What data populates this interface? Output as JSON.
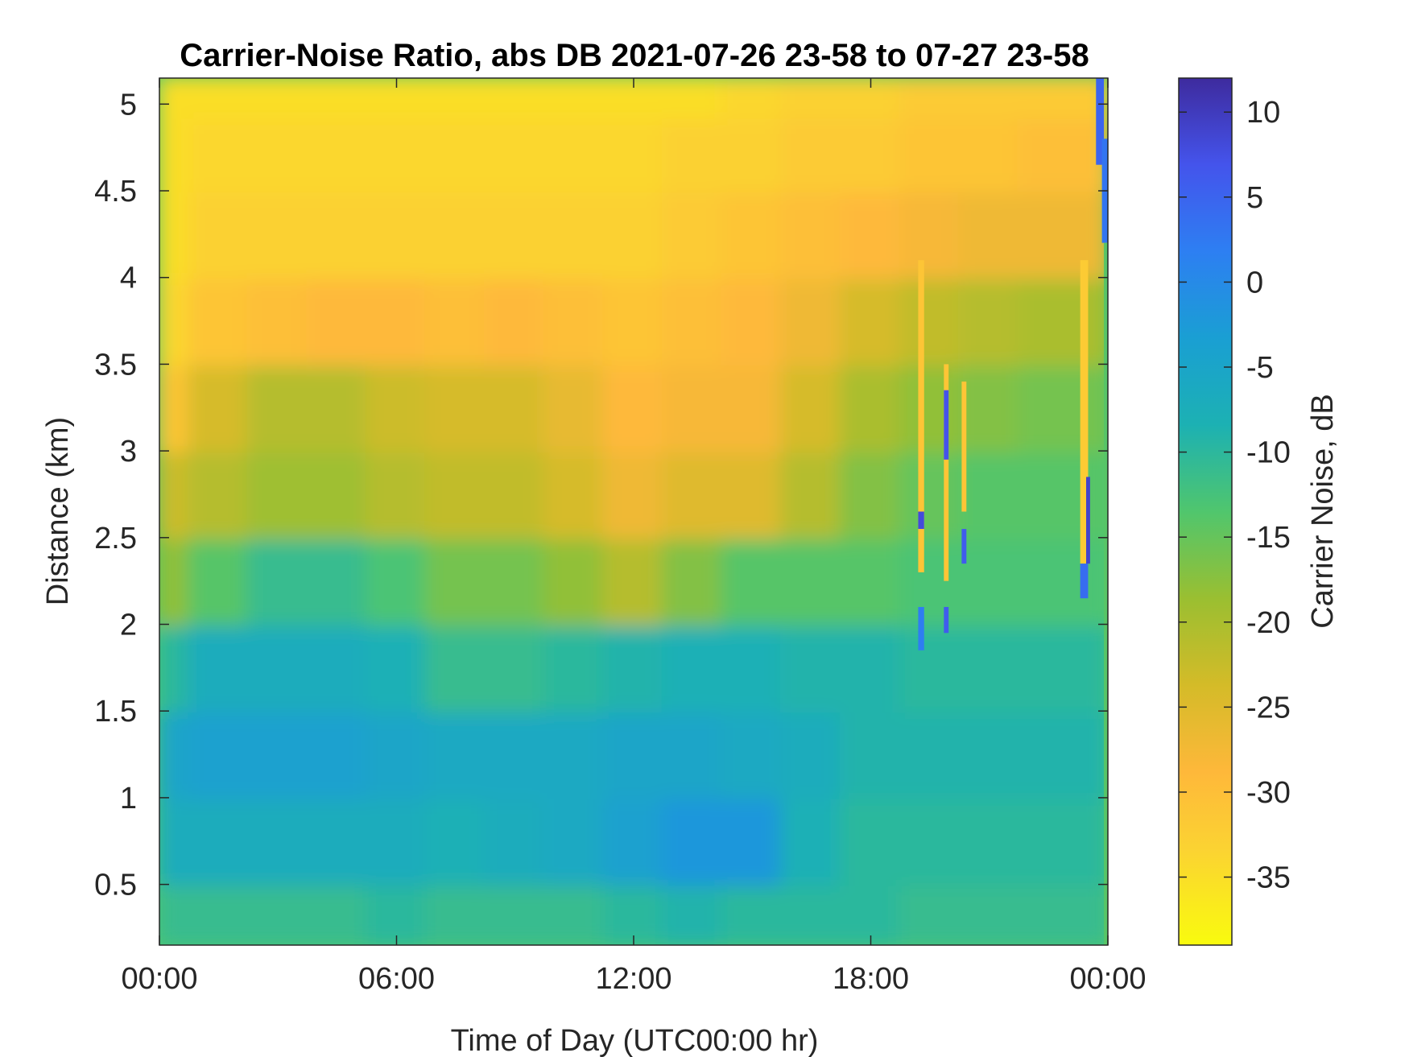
{
  "chart_data": {
    "type": "heatmap",
    "title": "Carrier-Noise Ratio, abs DB 2021-07-26 23-58 to 07-27 23-58",
    "xlabel": "Time of Day (UTC00:00 hr)",
    "ylabel": "Distance (km)",
    "colorbar_label": "Carrier Noise, dB",
    "x_unit": "hours",
    "xlim": [
      0,
      24
    ],
    "ylim": [
      0.15,
      5.15
    ],
    "clim": [
      -39,
      12
    ],
    "x_ticks": [
      0,
      6,
      12,
      18,
      24
    ],
    "x_tick_labels": [
      "00:00",
      "06:00",
      "12:00",
      "18:00",
      "00:00"
    ],
    "y_ticks": [
      0.5,
      1,
      1.5,
      2,
      2.5,
      3,
      3.5,
      4,
      4.5,
      5
    ],
    "y_tick_labels": [
      "0.5",
      "1",
      "1.5",
      "2",
      "2.5",
      "3",
      "3.5",
      "4",
      "4.5",
      "5"
    ],
    "colorbar_ticks": [
      10,
      5,
      0,
      -5,
      -10,
      -15,
      -20,
      -25,
      -30,
      -35
    ],
    "colorbar_tick_labels": [
      "10",
      "5",
      "0",
      "-5",
      "-10",
      "-15",
      "-20",
      "-25",
      "-30",
      "-35"
    ],
    "colormap": "parula",
    "x_hours": [
      0,
      1.5,
      3,
      4.5,
      6,
      7.5,
      9,
      10.5,
      12,
      13.5,
      15,
      16.5,
      18,
      19.5,
      21,
      22.5,
      24
    ],
    "y_km": [
      0.25,
      0.75,
      1.25,
      1.75,
      2.25,
      2.75,
      3.25,
      3.75,
      4.25,
      4.75,
      5.1
    ],
    "values": [
      [
        -11,
        -11,
        -11,
        -11,
        -10,
        -11,
        -11,
        -11,
        -10,
        -9,
        -10,
        -10,
        -10,
        -11,
        -11,
        -11,
        -11
      ],
      [
        -7,
        -7,
        -7,
        -7,
        -7,
        -8,
        -7,
        -6,
        -4,
        -2,
        -2,
        -8,
        -10,
        -10,
        -10,
        -10,
        -10
      ],
      [
        -5,
        -4,
        -4,
        -4,
        -5,
        -6,
        -6,
        -6,
        -5,
        -5,
        -6,
        -7,
        -9,
        -9,
        -9,
        -9,
        -9
      ],
      [
        -10,
        -7,
        -7,
        -7,
        -8,
        -11,
        -11,
        -10,
        -9,
        -8,
        -8,
        -9,
        -9,
        -10,
        -10,
        -10,
        -10
      ],
      [
        -18,
        -14,
        -11,
        -11,
        -13,
        -16,
        -16,
        -18,
        -21,
        -17,
        -14,
        -14,
        -14,
        -13,
        -13,
        -13,
        -13
      ],
      [
        -23,
        -21,
        -19,
        -19,
        -21,
        -22,
        -22,
        -24,
        -27,
        -25,
        -25,
        -21,
        -17,
        -15,
        -14,
        -14,
        -14
      ],
      [
        -31,
        -24,
        -21,
        -21,
        -23,
        -24,
        -24,
        -26,
        -29,
        -28,
        -28,
        -24,
        -20,
        -18,
        -17,
        -16,
        -16
      ],
      [
        -34,
        -31,
        -30,
        -29,
        -29,
        -30,
        -29,
        -30,
        -31,
        -30,
        -29,
        -27,
        -24,
        -22,
        -21,
        -20,
        -20
      ],
      [
        -35,
        -33,
        -33,
        -33,
        -33,
        -33,
        -33,
        -33,
        -33,
        -32,
        -31,
        -30,
        -29,
        -28,
        -27,
        -27,
        -27
      ],
      [
        -35,
        -34,
        -34,
        -34,
        -34,
        -34,
        -34,
        -34,
        -34,
        -33,
        -33,
        -32,
        -32,
        -31,
        -31,
        -30,
        -30
      ],
      [
        -35,
        -35,
        -35,
        -35,
        -35,
        -35,
        -35,
        -35,
        -35,
        -35,
        -34,
        -33,
        -33,
        -32,
        -32,
        -32,
        -32
      ]
    ],
    "streaks": [
      {
        "x_start": 19.2,
        "x_end": 19.35,
        "y_start": 2.3,
        "y_end": 4.1,
        "value": -31
      },
      {
        "x_start": 19.2,
        "x_end": 19.35,
        "y_start": 2.55,
        "y_end": 2.65,
        "value": 8
      },
      {
        "x_start": 19.2,
        "x_end": 19.35,
        "y_start": 1.85,
        "y_end": 2.1,
        "value": 2
      },
      {
        "x_start": 19.85,
        "x_end": 19.97,
        "y_start": 2.25,
        "y_end": 3.5,
        "value": -31
      },
      {
        "x_start": 19.85,
        "x_end": 19.97,
        "y_start": 2.95,
        "y_end": 3.35,
        "value": 7
      },
      {
        "x_start": 19.85,
        "x_end": 19.97,
        "y_start": 1.95,
        "y_end": 2.1,
        "value": 6
      },
      {
        "x_start": 20.3,
        "x_end": 20.42,
        "y_start": 2.65,
        "y_end": 3.4,
        "value": -31
      },
      {
        "x_start": 20.3,
        "x_end": 20.42,
        "y_start": 2.35,
        "y_end": 2.55,
        "value": 6
      },
      {
        "x_start": 23.3,
        "x_end": 23.5,
        "y_start": 2.35,
        "y_end": 4.1,
        "value": -32
      },
      {
        "x_start": 23.3,
        "x_end": 23.5,
        "y_start": 2.15,
        "y_end": 2.35,
        "value": 4
      },
      {
        "x_start": 23.45,
        "x_end": 23.55,
        "y_start": 2.35,
        "y_end": 2.85,
        "value": 9
      },
      {
        "x_start": 23.7,
        "x_end": 23.9,
        "y_start": 4.65,
        "y_end": 5.15,
        "value": 5
      },
      {
        "x_start": 23.85,
        "x_end": 24,
        "y_start": 4.2,
        "y_end": 4.8,
        "value": 3
      },
      {
        "x_start": 23.9,
        "x_end": 24,
        "y_start": 0.15,
        "y_end": 4.2,
        "value": -14
      }
    ]
  }
}
